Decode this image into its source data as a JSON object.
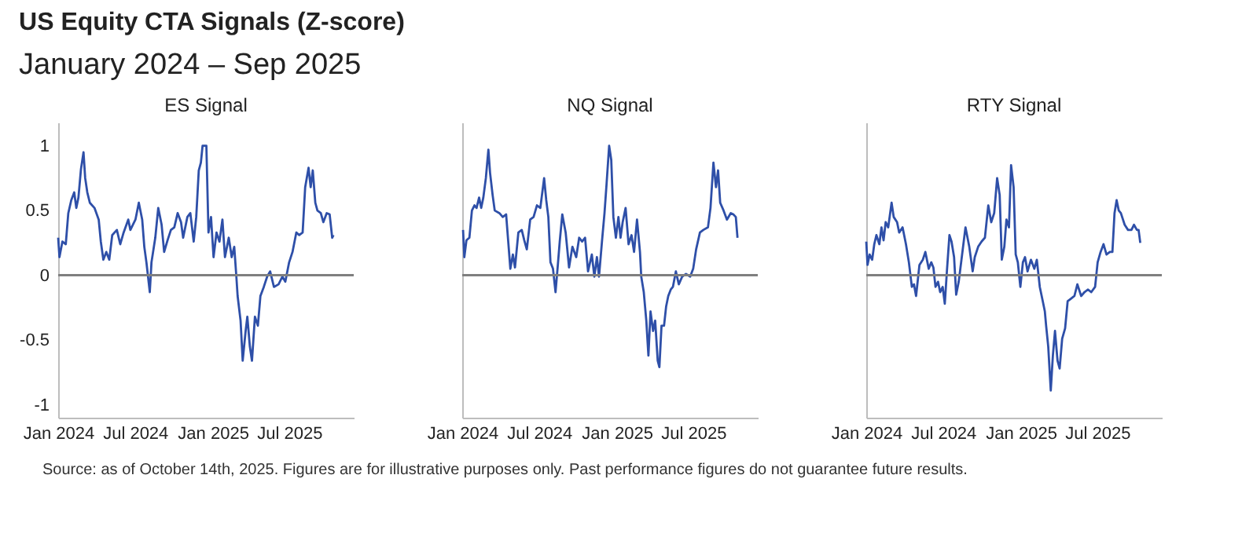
{
  "chart_data": [
    {
      "type": "other",
      "title": "US Equity CTA Signals (Z-score)",
      "subtitle": "January 2024 – Sep 2025",
      "annotations": [
        "Source: as of October 14th, 2025. Figures are for illustrative purposes only. Past performance figures do not guarantee future results."
      ]
    },
    {
      "type": "line",
      "title": "ES Signal",
      "xlim": [
        "2024-01-01",
        "2025-12-01"
      ],
      "xticks": [
        {
          "value": "2024-01-01",
          "label": "Jan 2024"
        },
        {
          "value": "2024-07-01",
          "label": "Jul 2024"
        },
        {
          "value": "2025-01-01",
          "label": "Jan 2025"
        },
        {
          "value": "2025-07-01",
          "label": "Jul 2025"
        }
      ],
      "ylim": [
        -1.1,
        1.18
      ],
      "yticks": [
        -1,
        -0.5,
        0,
        0.5,
        1
      ],
      "grid": false,
      "ref_lines": [
        {
          "axis": "y",
          "value": 0,
          "color": "#7f7f7f"
        }
      ],
      "series": [
        {
          "color": "#2e4fa8",
          "x": [
            "2024-01-01",
            "2024-01-04",
            "2024-01-11",
            "2024-01-19",
            "2024-01-25",
            "2024-02-01",
            "2024-02-08",
            "2024-02-13",
            "2024-02-18",
            "2024-02-24",
            "2024-03-01",
            "2024-03-05",
            "2024-03-10",
            "2024-03-16",
            "2024-03-27",
            "2024-04-06",
            "2024-04-11",
            "2024-04-17",
            "2024-04-24",
            "2024-05-01",
            "2024-05-08",
            "2024-05-19",
            "2024-05-27",
            "2024-06-04",
            "2024-06-15",
            "2024-06-20",
            "2024-07-02",
            "2024-07-10",
            "2024-07-18",
            "2024-07-23",
            "2024-07-28",
            "2024-08-05",
            "2024-08-09",
            "2024-08-18",
            "2024-08-25",
            "2024-09-02",
            "2024-09-08",
            "2024-09-16",
            "2024-09-24",
            "2024-10-02",
            "2024-10-10",
            "2024-10-18",
            "2024-10-23",
            "2024-11-02",
            "2024-11-09",
            "2024-11-17",
            "2024-11-23",
            "2024-11-29",
            "2024-12-04",
            "2024-12-08",
            "2024-12-17",
            "2024-12-22",
            "2024-12-28",
            "2025-01-03",
            "2025-01-10",
            "2025-01-17",
            "2025-01-24",
            "2025-01-30",
            "2025-02-08",
            "2025-02-15",
            "2025-02-21",
            "2025-02-26",
            "2025-03-01",
            "2025-03-08",
            "2025-03-13",
            "2025-03-20",
            "2025-03-24",
            "2025-03-30",
            "2025-04-04",
            "2025-04-11",
            "2025-04-18",
            "2025-04-24",
            "2025-05-02",
            "2025-05-10",
            "2025-05-17",
            "2025-05-26",
            "2025-06-06",
            "2025-06-15",
            "2025-06-22",
            "2025-07-01",
            "2025-07-09",
            "2025-07-18",
            "2025-07-25",
            "2025-08-02",
            "2025-08-08",
            "2025-08-16",
            "2025-08-21",
            "2025-08-26",
            "2025-09-01",
            "2025-09-06",
            "2025-09-14",
            "2025-09-20",
            "2025-09-28",
            "2025-10-05",
            "2025-10-11",
            "2025-10-14"
          ],
          "values": [
            0.29,
            0.14,
            0.26,
            0.24,
            0.48,
            0.58,
            0.64,
            0.52,
            0.6,
            0.82,
            0.95,
            0.75,
            0.64,
            0.56,
            0.52,
            0.43,
            0.26,
            0.12,
            0.18,
            0.12,
            0.31,
            0.35,
            0.24,
            0.33,
            0.43,
            0.35,
            0.43,
            0.56,
            0.43,
            0.22,
            0.1,
            -0.13,
            0.1,
            0.29,
            0.52,
            0.39,
            0.18,
            0.27,
            0.35,
            0.37,
            0.48,
            0.41,
            0.29,
            0.45,
            0.48,
            0.26,
            0.45,
            0.81,
            0.87,
            1.0,
            1.0,
            0.33,
            0.45,
            0.14,
            0.33,
            0.26,
            0.43,
            0.14,
            0.29,
            0.14,
            0.22,
            -0.01,
            -0.16,
            -0.35,
            -0.66,
            -0.43,
            -0.32,
            -0.55,
            -0.66,
            -0.32,
            -0.39,
            -0.16,
            -0.09,
            -0.01,
            0.03,
            -0.09,
            -0.07,
            -0.01,
            -0.05,
            0.1,
            0.18,
            0.33,
            0.31,
            0.33,
            0.68,
            0.83,
            0.68,
            0.81,
            0.56,
            0.5,
            0.48,
            0.41,
            0.48,
            0.47,
            0.29,
            0.31
          ]
        }
      ]
    },
    {
      "type": "line",
      "title": "NQ Signal",
      "tick_labels": "x",
      "xlim": [
        "2024-01-01",
        "2025-12-01"
      ],
      "xticks": [
        {
          "value": "2024-01-01",
          "label": "Jan 2024"
        },
        {
          "value": "2024-07-01",
          "label": "Jul 2024"
        },
        {
          "value": "2025-01-01",
          "label": "Jan 2025"
        },
        {
          "value": "2025-07-01",
          "label": "Jul 2025"
        }
      ],
      "ylim": [
        -1.1,
        1.18
      ],
      "yticks": [
        -1,
        -0.5,
        0,
        0.5,
        1
      ],
      "grid": false,
      "ref_lines": [
        {
          "axis": "y",
          "value": 0,
          "color": "#7f7f7f"
        }
      ],
      "series": [
        {
          "color": "#2e4fa8",
          "x": [
            "2024-01-03",
            "2024-01-06",
            "2024-01-11",
            "2024-01-18",
            "2024-01-24",
            "2024-01-30",
            "2024-02-04",
            "2024-02-10",
            "2024-02-15",
            "2024-02-20",
            "2024-02-26",
            "2024-03-03",
            "2024-03-07",
            "2024-03-13",
            "2024-03-18",
            "2024-03-29",
            "2024-04-06",
            "2024-04-14",
            "2024-04-19",
            "2024-04-24",
            "2024-04-30",
            "2024-05-05",
            "2024-05-13",
            "2024-05-21",
            "2024-05-27",
            "2024-06-02",
            "2024-06-10",
            "2024-06-18",
            "2024-06-26",
            "2024-07-04",
            "2024-07-13",
            "2024-07-18",
            "2024-07-23",
            "2024-07-28",
            "2024-08-03",
            "2024-08-09",
            "2024-08-14",
            "2024-08-19",
            "2024-08-25",
            "2024-09-02",
            "2024-09-10",
            "2024-09-18",
            "2024-09-27",
            "2024-10-04",
            "2024-10-11",
            "2024-10-18",
            "2024-10-25",
            "2024-11-03",
            "2024-11-09",
            "2024-11-15",
            "2024-11-20",
            "2024-11-27",
            "2024-12-03",
            "2024-12-08",
            "2024-12-14",
            "2024-12-19",
            "2024-12-24",
            "2024-12-30",
            "2025-01-05",
            "2025-01-10",
            "2025-01-15",
            "2025-01-22",
            "2025-01-29",
            "2025-02-05",
            "2025-02-11",
            "2025-02-18",
            "2025-02-25",
            "2025-02-28",
            "2025-03-06",
            "2025-03-12",
            "2025-03-17",
            "2025-03-22",
            "2025-03-28",
            "2025-04-02",
            "2025-04-08",
            "2025-04-12",
            "2025-04-17",
            "2025-04-23",
            "2025-04-28",
            "2025-05-03",
            "2025-05-09",
            "2025-05-14",
            "2025-05-21",
            "2025-05-28",
            "2025-06-05",
            "2025-06-14",
            "2025-06-24",
            "2025-07-01",
            "2025-07-08",
            "2025-07-17",
            "2025-07-25",
            "2025-08-05",
            "2025-08-11",
            "2025-08-18",
            "2025-08-24",
            "2025-08-29",
            "2025-09-03",
            "2025-09-11",
            "2025-09-19",
            "2025-09-28",
            "2025-10-04",
            "2025-10-10",
            "2025-10-14"
          ],
          "values": [
            0.35,
            0.14,
            0.27,
            0.29,
            0.5,
            0.54,
            0.52,
            0.6,
            0.52,
            0.6,
            0.75,
            0.97,
            0.79,
            0.62,
            0.5,
            0.48,
            0.45,
            0.47,
            0.26,
            0.05,
            0.16,
            0.06,
            0.33,
            0.35,
            0.27,
            0.2,
            0.43,
            0.45,
            0.54,
            0.52,
            0.75,
            0.58,
            0.45,
            0.1,
            0.05,
            -0.13,
            0.06,
            0.26,
            0.47,
            0.33,
            0.06,
            0.22,
            0.14,
            0.29,
            0.26,
            0.29,
            0.03,
            0.16,
            -0.01,
            0.14,
            -0.01,
            0.26,
            0.48,
            0.71,
            1.0,
            0.89,
            0.45,
            0.29,
            0.45,
            0.29,
            0.41,
            0.52,
            0.24,
            0.31,
            0.18,
            0.43,
            0.18,
            -0.01,
            -0.13,
            -0.35,
            -0.62,
            -0.28,
            -0.43,
            -0.35,
            -0.66,
            -0.71,
            -0.39,
            -0.39,
            -0.24,
            -0.16,
            -0.11,
            -0.09,
            0.03,
            -0.07,
            -0.01,
            0.01,
            -0.01,
            0.05,
            0.2,
            0.33,
            0.35,
            0.37,
            0.52,
            0.87,
            0.68,
            0.81,
            0.56,
            0.5,
            0.43,
            0.48,
            0.47,
            0.45,
            0.29
          ]
        }
      ]
    },
    {
      "type": "line",
      "title": "RTY Signal",
      "tick_labels": "x",
      "xlim": [
        "2024-01-01",
        "2025-12-01"
      ],
      "xticks": [
        {
          "value": "2024-01-01",
          "label": "Jan 2024"
        },
        {
          "value": "2024-07-01",
          "label": "Jul 2024"
        },
        {
          "value": "2025-01-01",
          "label": "Jan 2025"
        },
        {
          "value": "2025-07-01",
          "label": "Jul 2025"
        }
      ],
      "ylim": [
        -1.1,
        1.18
      ],
      "yticks": [
        -1,
        -0.5,
        0,
        0.5,
        1
      ],
      "grid": false,
      "ref_lines": [
        {
          "axis": "y",
          "value": 0,
          "color": "#7f7f7f"
        }
      ],
      "series": [
        {
          "color": "#2e4fa8",
          "x": [
            "2024-01-01",
            "2024-01-04",
            "2024-01-09",
            "2024-01-15",
            "2024-01-20",
            "2024-01-25",
            "2024-02-01",
            "2024-02-06",
            "2024-02-11",
            "2024-02-16",
            "2024-02-22",
            "2024-03-01",
            "2024-03-06",
            "2024-03-14",
            "2024-03-19",
            "2024-03-27",
            "2024-04-04",
            "2024-04-11",
            "2024-04-18",
            "2024-04-23",
            "2024-04-28",
            "2024-05-06",
            "2024-05-14",
            "2024-05-20",
            "2024-05-28",
            "2024-06-03",
            "2024-06-08",
            "2024-06-13",
            "2024-06-19",
            "2024-06-24",
            "2024-06-30",
            "2024-07-05",
            "2024-07-10",
            "2024-07-16",
            "2024-07-21",
            "2024-07-27",
            "2024-08-01",
            "2024-08-07",
            "2024-08-15",
            "2024-08-23",
            "2024-09-01",
            "2024-09-09",
            "2024-09-14",
            "2024-09-22",
            "2024-09-30",
            "2024-10-08",
            "2024-10-16",
            "2024-10-23",
            "2024-10-30",
            "2024-11-06",
            "2024-11-12",
            "2024-11-17",
            "2024-11-23",
            "2024-11-28",
            "2024-12-04",
            "2024-12-09",
            "2024-12-15",
            "2024-12-20",
            "2024-12-25",
            "2024-12-31",
            "2025-01-06",
            "2025-01-11",
            "2025-01-17",
            "2025-01-25",
            "2025-02-02",
            "2025-02-08",
            "2025-02-15",
            "2025-02-22",
            "2025-02-27",
            "2025-03-02",
            "2025-03-07",
            "2025-03-13",
            "2025-03-18",
            "2025-03-23",
            "2025-03-29",
            "2025-04-03",
            "2025-04-09",
            "2025-04-16",
            "2025-04-22",
            "2025-04-30",
            "2025-05-08",
            "2025-05-15",
            "2025-05-24",
            "2025-06-01",
            "2025-06-09",
            "2025-06-17",
            "2025-06-26",
            "2025-07-02",
            "2025-07-09",
            "2025-07-16",
            "2025-07-23",
            "2025-07-31",
            "2025-08-06",
            "2025-08-11",
            "2025-08-16",
            "2025-08-21",
            "2025-08-26",
            "2025-09-04",
            "2025-09-12",
            "2025-09-20",
            "2025-09-26",
            "2025-10-03",
            "2025-10-07",
            "2025-10-11"
          ],
          "values": [
            0.26,
            0.08,
            0.16,
            0.12,
            0.24,
            0.31,
            0.24,
            0.37,
            0.27,
            0.41,
            0.37,
            0.56,
            0.45,
            0.41,
            0.33,
            0.37,
            0.24,
            0.1,
            -0.09,
            -0.07,
            -0.16,
            0.08,
            0.12,
            0.18,
            0.05,
            0.1,
            0.06,
            -0.09,
            -0.05,
            -0.13,
            -0.09,
            -0.22,
            0.03,
            0.31,
            0.26,
            0.14,
            -0.15,
            -0.05,
            0.16,
            0.37,
            0.22,
            0.03,
            0.14,
            0.22,
            0.26,
            0.29,
            0.54,
            0.41,
            0.48,
            0.75,
            0.62,
            0.12,
            0.22,
            0.43,
            0.37,
            0.85,
            0.68,
            0.16,
            0.1,
            -0.09,
            0.1,
            0.14,
            0.03,
            0.12,
            0.05,
            0.12,
            -0.09,
            -0.2,
            -0.28,
            -0.39,
            -0.55,
            -0.89,
            -0.62,
            -0.43,
            -0.66,
            -0.72,
            -0.49,
            -0.41,
            -0.2,
            -0.18,
            -0.16,
            -0.07,
            -0.16,
            -0.13,
            -0.11,
            -0.13,
            -0.09,
            0.1,
            0.18,
            0.24,
            0.16,
            0.18,
            0.18,
            0.48,
            0.58,
            0.5,
            0.48,
            0.39,
            0.35,
            0.35,
            0.39,
            0.35,
            0.35,
            0.25
          ]
        }
      ]
    }
  ]
}
